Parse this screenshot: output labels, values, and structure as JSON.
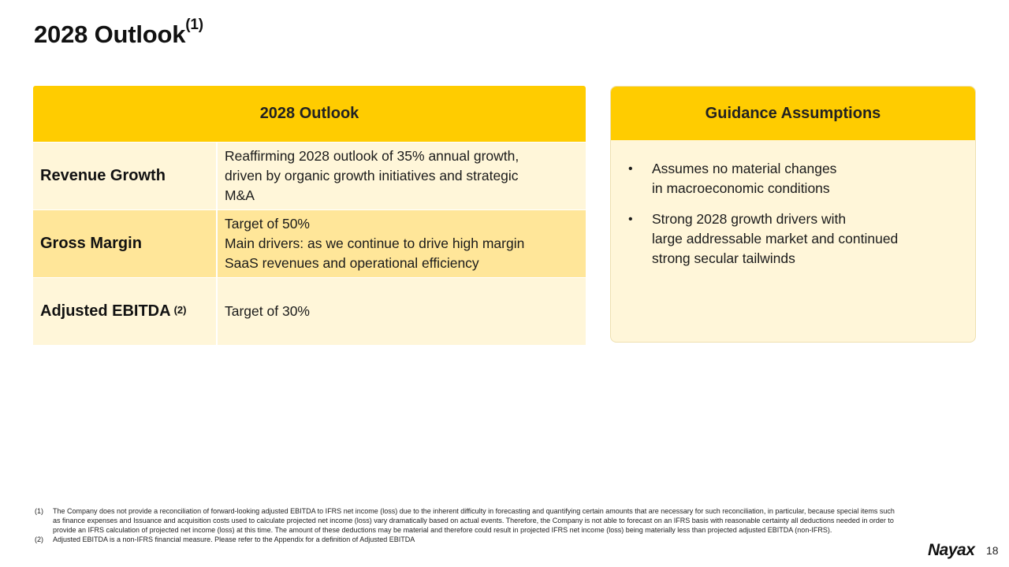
{
  "page": {
    "title": "2028 Outlook",
    "title_note": "(1)",
    "page_number": "18",
    "logo_text": "Nayax"
  },
  "outlook": {
    "header": "2028 Outlook",
    "rows": [
      {
        "label": "Revenue Growth",
        "label_note": "",
        "lines": [
          "Reaffirming 2028 outlook of 35% annual growth,",
          "driven by organic growth initiatives and strategic",
          "M&A"
        ]
      },
      {
        "label": "Gross Margin",
        "label_note": "",
        "lines": [
          "Target of 50%",
          "Main drivers: as we continue to drive high margin",
          "SaaS revenues and operational efficiency"
        ]
      },
      {
        "label": "Adjusted EBITDA",
        "label_note": "(2)",
        "lines": [
          "Target of 30%"
        ]
      }
    ]
  },
  "guidance": {
    "header": "Guidance Assumptions",
    "bullets": [
      {
        "lines": [
          "Assumes no material changes",
          "in macroeconomic conditions"
        ]
      },
      {
        "lines": [
          "Strong 2028 growth drivers with",
          "large addressable market and continued",
          "strong secular tailwinds"
        ]
      }
    ]
  },
  "footnotes": [
    {
      "num": "(1)",
      "text": "The Company does not provide a reconciliation of forward-looking adjusted EBITDA to IFRS net income (loss) due to the inherent difficulty in forecasting and quantifying certain amounts that are necessary for such reconciliation, in particular, because special items such as finance expenses and Issuance and acquisition costs used to calculate projected net income (loss) vary dramatically based on actual events. Therefore, the Company is not able to forecast on an IFRS basis with reasonable certainty all deductions needed in order to provide an IFRS calculation of projected net income (loss) at this time. The amount of these deductions may be material and therefore could result in projected IFRS net income (loss) being materially less than projected adjusted EBITDA (non-IFRS)."
    },
    {
      "num": "(2)",
      "text": "Adjusted EBITDA is a non-IFRS financial measure. Please refer to the Appendix for a definition of Adjusted EBITDA"
    }
  ],
  "colors": {
    "accent": "#FFCC00",
    "row_light": "#FFF6D9",
    "row_dark": "#FFE699"
  }
}
